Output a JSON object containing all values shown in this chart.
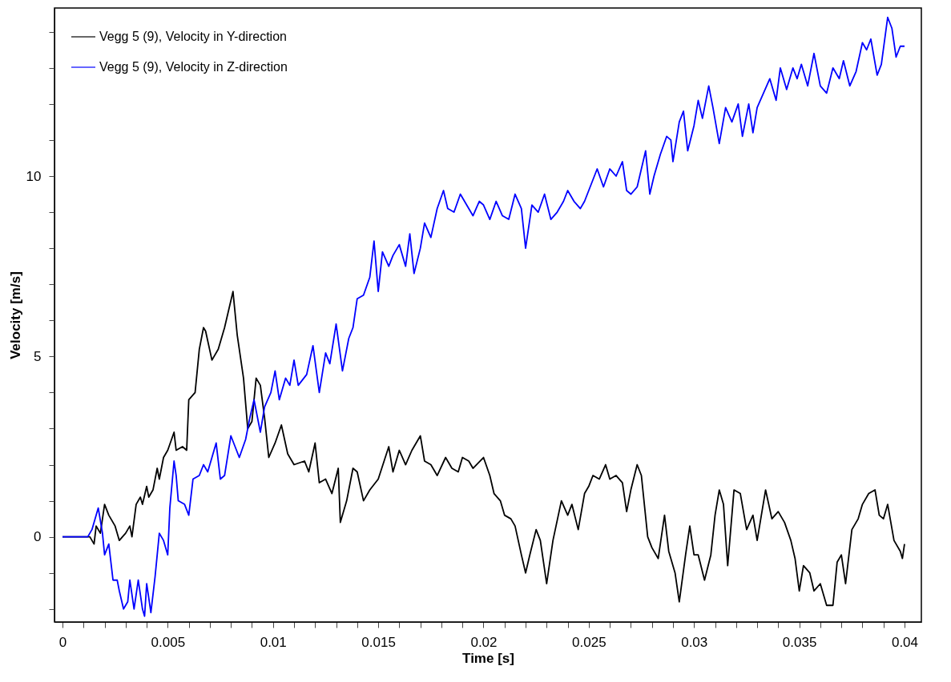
{
  "chart_data": {
    "type": "line",
    "xlabel": "Time [s]",
    "ylabel": "Velocity [m/s]",
    "xlim": [
      -0.00038,
      0.0408
    ],
    "ylim": [
      -2.36,
      14.66
    ],
    "xticks": [
      0,
      {
        "value": 0.001,
        "label": null
      },
      {
        "value": 0.002,
        "label": null
      },
      {
        "value": 0.003,
        "label": null
      },
      {
        "value": 0.004,
        "label": null
      },
      0.005,
      {
        "value": 0.006,
        "label": null
      },
      {
        "value": 0.007,
        "label": null
      },
      {
        "value": 0.008,
        "label": null
      },
      {
        "value": 0.009,
        "label": null
      },
      0.01,
      {
        "value": 0.011,
        "label": null
      },
      {
        "value": 0.012,
        "label": null
      },
      {
        "value": 0.013,
        "label": null
      },
      {
        "value": 0.014,
        "label": null
      },
      0.015,
      {
        "value": 0.016,
        "label": null
      },
      {
        "value": 0.017,
        "label": null
      },
      {
        "value": 0.018,
        "label": null
      },
      {
        "value": 0.019,
        "label": null
      },
      0.02,
      {
        "value": 0.021,
        "label": null
      },
      {
        "value": 0.022,
        "label": null
      },
      {
        "value": 0.023,
        "label": null
      },
      {
        "value": 0.024,
        "label": null
      },
      0.025,
      {
        "value": 0.026,
        "label": null
      },
      {
        "value": 0.027,
        "label": null
      },
      {
        "value": 0.028,
        "label": null
      },
      {
        "value": 0.029,
        "label": null
      },
      0.03,
      {
        "value": 0.031,
        "label": null
      },
      {
        "value": 0.032,
        "label": null
      },
      {
        "value": 0.033,
        "label": null
      },
      {
        "value": 0.034,
        "label": null
      },
      0.035,
      {
        "value": 0.036,
        "label": null
      },
      {
        "value": 0.037,
        "label": null
      },
      {
        "value": 0.038,
        "label": null
      },
      {
        "value": 0.039,
        "label": null
      },
      0.04
    ],
    "yticks": [
      {
        "value": -2,
        "label": null
      },
      {
        "value": -1,
        "label": null
      },
      0,
      {
        "value": 1,
        "label": null
      },
      {
        "value": 2,
        "label": null
      },
      {
        "value": 3,
        "label": null
      },
      {
        "value": 4,
        "label": null
      },
      5,
      {
        "value": 6,
        "label": null
      },
      {
        "value": 7,
        "label": null
      },
      {
        "value": 8,
        "label": null
      },
      {
        "value": 9,
        "label": null
      },
      10,
      {
        "value": 11,
        "label": null
      },
      {
        "value": 12,
        "label": null
      },
      {
        "value": 13,
        "label": null
      },
      {
        "value": 14,
        "label": null
      }
    ],
    "grid": false,
    "legend": "top left",
    "marker": "none",
    "line_style": "solid",
    "series": [
      {
        "name": "Vegg 5 (9), Velocity in Y-direction",
        "color": "#000000",
        "x": [
          0,
          0.0013,
          0.0015,
          0.0016,
          0.0018,
          0.002,
          0.0022,
          0.0025,
          0.0027,
          0.003,
          0.0032,
          0.0033,
          0.0035,
          0.0037,
          0.0038,
          0.004,
          0.0041,
          0.0043,
          0.0045,
          0.0046,
          0.0048,
          0.005,
          0.0053,
          0.0054,
          0.0057,
          0.0059,
          0.006,
          0.0063,
          0.0065,
          0.0067,
          0.0068,
          0.0071,
          0.0074,
          0.0077,
          0.0081,
          0.0083,
          0.0086,
          0.0088,
          0.009,
          0.0092,
          0.0094,
          0.0096,
          0.0098,
          0.0101,
          0.0104,
          0.0107,
          0.011,
          0.0115,
          0.0117,
          0.012,
          0.0122,
          0.0125,
          0.0128,
          0.0131,
          0.0132,
          0.0135,
          0.0138,
          0.014,
          0.0143,
          0.0146,
          0.015,
          0.0155,
          0.0157,
          0.016,
          0.0163,
          0.0166,
          0.017,
          0.0172,
          0.0175,
          0.0178,
          0.0182,
          0.0185,
          0.0188,
          0.019,
          0.0193,
          0.0195,
          0.02,
          0.0203,
          0.0205,
          0.0208,
          0.021,
          0.0213,
          0.0215,
          0.0218,
          0.022,
          0.0222,
          0.0225,
          0.0227,
          0.023,
          0.0233,
          0.0237,
          0.024,
          0.0242,
          0.0245,
          0.0248,
          0.025,
          0.0252,
          0.0255,
          0.0258,
          0.026,
          0.0263,
          0.0266,
          0.0268,
          0.027,
          0.0273,
          0.0275,
          0.0278,
          0.028,
          0.0283,
          0.0286,
          0.0288,
          0.0291,
          0.0293,
          0.0296,
          0.0298,
          0.03,
          0.0302,
          0.0305,
          0.0308,
          0.031,
          0.0312,
          0.0314,
          0.0316,
          0.0319,
          0.0322,
          0.0325,
          0.0328,
          0.033,
          0.0332,
          0.0334,
          0.0337,
          0.034,
          0.0343,
          0.0346,
          0.0348,
          0.035,
          0.0352,
          0.0355,
          0.0357,
          0.036,
          0.0363,
          0.0366,
          0.0368,
          0.037,
          0.0372,
          0.0375,
          0.0378,
          0.038,
          0.0383,
          0.0386,
          0.0388,
          0.039,
          0.0392,
          0.0395,
          0.0398,
          0.0399,
          0.04
        ],
        "values": [
          0,
          0,
          -0.2,
          0.3,
          0.1,
          0.9,
          0.6,
          0.3,
          -0.1,
          0.1,
          0.3,
          0,
          0.9,
          1.1,
          0.9,
          1.4,
          1.1,
          1.3,
          1.9,
          1.6,
          2.2,
          2.4,
          2.9,
          2.4,
          2.5,
          2.4,
          3.8,
          4.0,
          5.2,
          5.8,
          5.7,
          4.9,
          5.2,
          5.8,
          6.8,
          5.6,
          4.4,
          3.0,
          3.2,
          4.4,
          4.2,
          3.3,
          2.2,
          2.6,
          3.1,
          2.3,
          2.0,
          2.1,
          1.8,
          2.6,
          1.5,
          1.6,
          1.2,
          1.9,
          0.4,
          1.0,
          1.9,
          1.8,
          1.0,
          1.3,
          1.6,
          2.5,
          1.8,
          2.4,
          2.0,
          2.4,
          2.8,
          2.1,
          2.0,
          1.7,
          2.2,
          1.9,
          1.8,
          2.2,
          2.1,
          1.9,
          2.2,
          1.7,
          1.2,
          1.0,
          0.6,
          0.5,
          0.3,
          -0.5,
          -1.0,
          -0.5,
          0.2,
          -0.1,
          -1.3,
          -0.1,
          1.0,
          0.6,
          0.9,
          0.2,
          1.2,
          1.4,
          1.7,
          1.6,
          2.0,
          1.6,
          1.7,
          1.5,
          0.7,
          1.3,
          2.0,
          1.7,
          0.0,
          -0.3,
          -0.6,
          0.6,
          -0.4,
          -1.0,
          -1.8,
          -0.5,
          0.3,
          -0.5,
          -0.5,
          -1.2,
          -0.5,
          0.6,
          1.3,
          0.9,
          -0.8,
          1.3,
          1.2,
          0.2,
          0.6,
          -0.1,
          0.6,
          1.3,
          0.5,
          0.7,
          0.4,
          -0.1,
          -0.6,
          -1.5,
          -0.8,
          -1.0,
          -1.5,
          -1.3,
          -1.9,
          -1.9,
          -0.7,
          -0.5,
          -1.3,
          0.2,
          0.5,
          0.9,
          1.2,
          1.3,
          0.6,
          0.5,
          0.9,
          -0.1,
          -0.4,
          -0.6,
          -0.2
        ]
      },
      {
        "name": "Vegg 5 (9), Velocity in Z-direction",
        "color": "#0000ff",
        "x": [
          0,
          0.0012,
          0.0014,
          0.0017,
          0.0019,
          0.002,
          0.0022,
          0.0024,
          0.0026,
          0.0027,
          0.0029,
          0.0031,
          0.0032,
          0.0034,
          0.0036,
          0.0038,
          0.0039,
          0.004,
          0.0042,
          0.0044,
          0.0045,
          0.0046,
          0.0048,
          0.005,
          0.0051,
          0.0053,
          0.0054,
          0.0055,
          0.0058,
          0.006,
          0.0062,
          0.0065,
          0.0067,
          0.0069,
          0.0071,
          0.0073,
          0.0075,
          0.0077,
          0.008,
          0.0082,
          0.0084,
          0.0087,
          0.0089,
          0.0091,
          0.0094,
          0.0096,
          0.0099,
          0.0101,
          0.0103,
          0.0106,
          0.0108,
          0.011,
          0.0112,
          0.0116,
          0.0119,
          0.0122,
          0.0125,
          0.0127,
          0.013,
          0.0133,
          0.0136,
          0.0138,
          0.014,
          0.0143,
          0.0146,
          0.0148,
          0.015,
          0.0152,
          0.0155,
          0.0157,
          0.016,
          0.0163,
          0.0165,
          0.0167,
          0.017,
          0.0172,
          0.0175,
          0.0178,
          0.0181,
          0.0183,
          0.0186,
          0.0189,
          0.0192,
          0.0195,
          0.0198,
          0.02,
          0.0203,
          0.0206,
          0.0209,
          0.0212,
          0.0215,
          0.0218,
          0.022,
          0.0223,
          0.0226,
          0.0229,
          0.0232,
          0.0235,
          0.0238,
          0.024,
          0.0243,
          0.0246,
          0.0248,
          0.0252,
          0.0254,
          0.0257,
          0.026,
          0.0263,
          0.0266,
          0.0268,
          0.027,
          0.0273,
          0.0277,
          0.0279,
          0.0281,
          0.0284,
          0.0287,
          0.0289,
          0.029,
          0.0293,
          0.0295,
          0.0297,
          0.03,
          0.0302,
          0.0304,
          0.0307,
          0.0309,
          0.0312,
          0.0315,
          0.0318,
          0.0321,
          0.0323,
          0.0326,
          0.0328,
          0.033,
          0.0333,
          0.0336,
          0.0339,
          0.0341,
          0.0344,
          0.0347,
          0.0349,
          0.0351,
          0.0354,
          0.0357,
          0.036,
          0.0363,
          0.0366,
          0.0369,
          0.0371,
          0.0374,
          0.0377,
          0.038,
          0.0382,
          0.0384,
          0.0387,
          0.0389,
          0.0392,
          0.0394,
          0.0396,
          0.0398,
          0.04
        ],
        "values": [
          0,
          0,
          0.2,
          0.8,
          0.1,
          -0.5,
          -0.2,
          -1.2,
          -1.2,
          -1.5,
          -2.0,
          -1.8,
          -1.2,
          -2.0,
          -1.2,
          -2.0,
          -2.2,
          -1.3,
          -2.1,
          -1.1,
          -0.5,
          0.1,
          -0.1,
          -0.5,
          0.8,
          2.1,
          1.7,
          1.0,
          0.9,
          0.6,
          1.6,
          1.7,
          2.0,
          1.8,
          2.2,
          2.6,
          1.6,
          1.7,
          2.8,
          2.5,
          2.2,
          2.7,
          3.3,
          3.8,
          2.9,
          3.6,
          4.0,
          4.6,
          3.8,
          4.4,
          4.2,
          4.9,
          4.2,
          4.5,
          5.3,
          4.0,
          5.1,
          4.8,
          5.9,
          4.6,
          5.5,
          5.8,
          6.6,
          6.7,
          7.2,
          8.2,
          6.8,
          7.9,
          7.5,
          7.8,
          8.1,
          7.5,
          8.4,
          7.3,
          8.0,
          8.7,
          8.3,
          9.1,
          9.6,
          9.1,
          9.0,
          9.5,
          9.2,
          8.9,
          9.3,
          9.2,
          8.8,
          9.3,
          8.9,
          8.8,
          9.5,
          9.1,
          8.0,
          9.2,
          9.0,
          9.5,
          8.8,
          9.0,
          9.3,
          9.6,
          9.3,
          9.1,
          9.3,
          9.9,
          10.2,
          9.7,
          10.2,
          10.0,
          10.4,
          9.6,
          9.5,
          9.7,
          10.7,
          9.5,
          10.0,
          10.6,
          11.1,
          11.0,
          10.4,
          11.5,
          11.8,
          10.7,
          11.4,
          12.1,
          11.6,
          12.5,
          11.9,
          10.9,
          11.9,
          11.5,
          12.0,
          11.1,
          12.0,
          11.2,
          11.9,
          12.3,
          12.7,
          12.1,
          13.0,
          12.4,
          13.0,
          12.7,
          13.1,
          12.5,
          13.4,
          12.5,
          12.3,
          13.0,
          12.7,
          13.2,
          12.5,
          12.9,
          13.7,
          13.5,
          13.8,
          12.8,
          13.1,
          14.4,
          14.1,
          13.3,
          13.6,
          13.6
        ]
      }
    ]
  }
}
